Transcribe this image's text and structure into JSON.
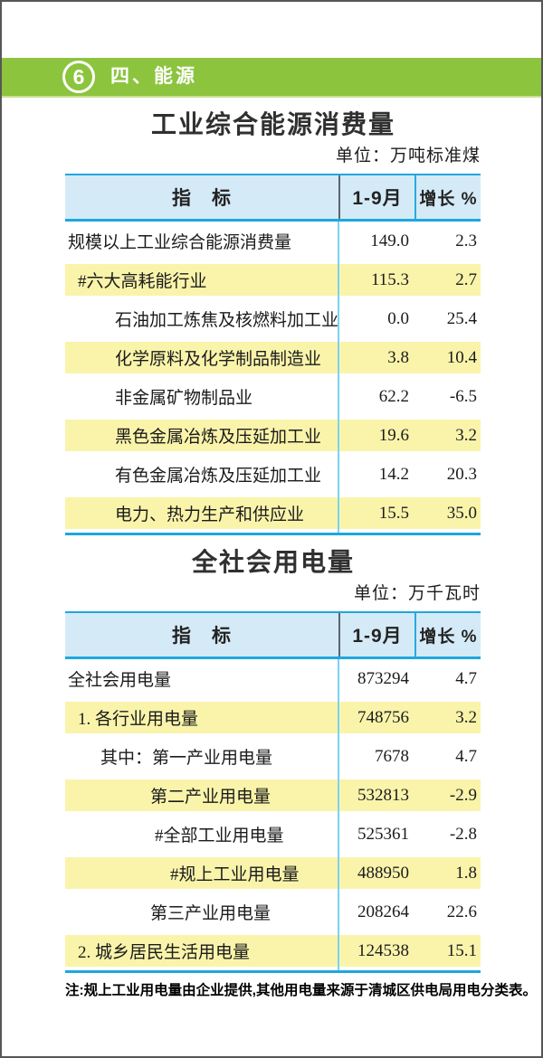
{
  "page": {
    "section_number": "6",
    "section_title": "四、能源",
    "note": "注:规上工业用电量由企业提供,其他用电量来源于清城区供电局用电分类表。"
  },
  "colors": {
    "bar_green": "#8cc43e",
    "header_blue_bg": "#d5eaf7",
    "table_line_cyan": "#1ea7e0",
    "row_highlight_yellow": "#faf4ab"
  },
  "tables": [
    {
      "title": "工业综合能源消费量",
      "unit": "单位：万吨标准煤",
      "columns": [
        "指　标",
        "1-9月",
        "增长 %"
      ],
      "rows": [
        {
          "label": "规模以上工业综合能源消费量",
          "value": "149.0",
          "growth": "2.3",
          "indent": 0,
          "highlight": false
        },
        {
          "label": "#六大高耗能行业",
          "value": "115.3",
          "growth": "2.7",
          "indent": 1,
          "highlight": true
        },
        {
          "label": "石油加工炼焦及核燃料加工业",
          "value": "0.0",
          "growth": "25.4",
          "indent": 2,
          "highlight": false
        },
        {
          "label": "化学原料及化学制品制造业",
          "value": "3.8",
          "growth": "10.4",
          "indent": 2,
          "highlight": true
        },
        {
          "label": "非金属矿物制品业",
          "value": "62.2",
          "growth": "-6.5",
          "indent": 2,
          "highlight": false
        },
        {
          "label": "黑色金属冶炼及压延加工业",
          "value": "19.6",
          "growth": "3.2",
          "indent": 2,
          "highlight": true
        },
        {
          "label": "有色金属冶炼及压延加工业",
          "value": "14.2",
          "growth": "20.3",
          "indent": 2,
          "highlight": false
        },
        {
          "label": "电力、热力生产和供应业",
          "value": "15.5",
          "growth": "35.0",
          "indent": 2,
          "highlight": true
        }
      ]
    },
    {
      "title": "全社会用电量",
      "unit": "单位：万千瓦时",
      "columns": [
        "指　标",
        "1-9月",
        "增长 %"
      ],
      "rows": [
        {
          "label": "全社会用电量",
          "value": "873294",
          "growth": "4.7",
          "indent": 0,
          "highlight": false
        },
        {
          "label": "1. 各行业用电量",
          "value": "748756",
          "growth": "3.2",
          "indent": 1,
          "highlight": true
        },
        {
          "label": "其中：第一产业用电量",
          "value": "7678",
          "growth": "4.7",
          "indent": 3,
          "highlight": false
        },
        {
          "label": "第二产业用电量",
          "value": "532813",
          "growth": "-2.9",
          "indent": 4,
          "highlight": true
        },
        {
          "label": "#全部工业用电量",
          "value": "525361",
          "growth": "-2.8",
          "indent": 5,
          "highlight": false
        },
        {
          "label": "#规上工业用电量",
          "value": "488950",
          "growth": "1.8",
          "indent": 6,
          "highlight": true
        },
        {
          "label": "第三产业用电量",
          "value": "208264",
          "growth": "22.6",
          "indent": 4,
          "highlight": false
        },
        {
          "label": "2. 城乡居民生活用电量",
          "value": "124538",
          "growth": "15.1",
          "indent": 1,
          "highlight": true
        }
      ]
    }
  ]
}
